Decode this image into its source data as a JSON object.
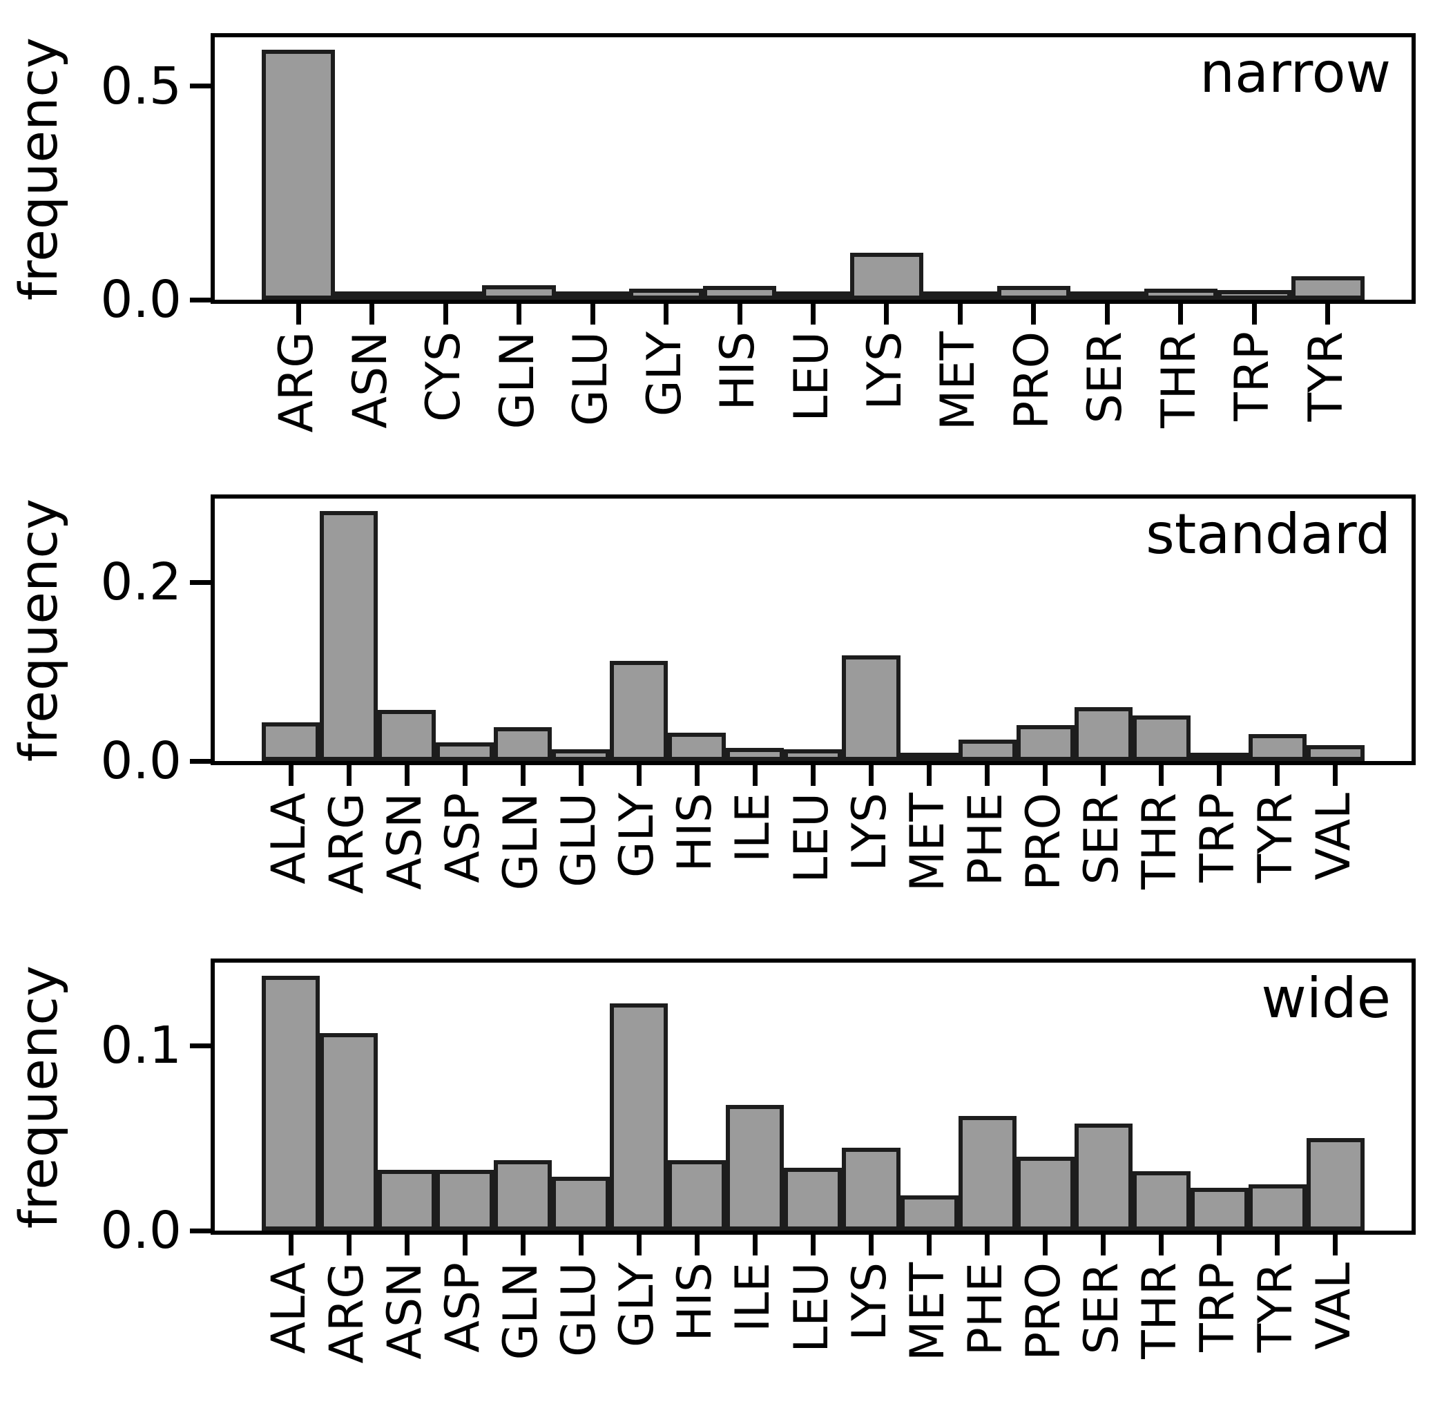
{
  "figure": {
    "background": "#ffffff",
    "bar_fill": "#9b9b9b",
    "bar_edge": "#1d1d1d",
    "axis_color": "#000000",
    "text_color": "#000000"
  },
  "chart_data": [
    {
      "type": "bar",
      "title": "narrow",
      "ylabel": "frequency",
      "xlabel": "",
      "grid": false,
      "legend": null,
      "ylim": [
        0,
        0.614
      ],
      "ytick_labels": [
        "0.0",
        "0.5"
      ],
      "ytick_values": [
        0.0,
        0.5
      ],
      "categories": [
        "ARG",
        "ASN",
        "CYS",
        "GLN",
        "GLU",
        "GLY",
        "HIS",
        "LEU",
        "LYS",
        "MET",
        "PRO",
        "SER",
        "THR",
        "TRP",
        "TYR"
      ],
      "values": [
        0.585,
        0.005,
        0.005,
        0.034,
        0.005,
        0.026,
        0.033,
        0.005,
        0.11,
        0.012,
        0.032,
        0.006,
        0.026,
        0.023,
        0.055
      ]
    },
    {
      "type": "bar",
      "title": "standard",
      "ylabel": "frequency",
      "xlabel": "",
      "grid": false,
      "legend": null,
      "ylim": [
        0,
        0.294
      ],
      "ytick_labels": [
        "0.0",
        "0.2"
      ],
      "ytick_values": [
        0.0,
        0.2
      ],
      "categories": [
        "ALA",
        "ARG",
        "ASN",
        "ASP",
        "GLN",
        "GLU",
        "GLY",
        "HIS",
        "ILE",
        "LEU",
        "LYS",
        "MET",
        "PHE",
        "PRO",
        "SER",
        "THR",
        "TRP",
        "TYR",
        "VAL"
      ],
      "values": [
        0.043,
        0.28,
        0.057,
        0.021,
        0.038,
        0.013,
        0.112,
        0.032,
        0.015,
        0.013,
        0.118,
        0.007,
        0.024,
        0.04,
        0.06,
        0.051,
        0.003,
        0.03,
        0.018
      ]
    },
    {
      "type": "bar",
      "title": "wide",
      "ylabel": "frequency",
      "xlabel": "",
      "grid": false,
      "legend": null,
      "ylim": [
        0,
        0.145
      ],
      "ytick_labels": [
        "0.0",
        "0.1"
      ],
      "ytick_values": [
        0.0,
        0.1
      ],
      "categories": [
        "ALA",
        "ARG",
        "ASN",
        "ASP",
        "GLN",
        "GLU",
        "GLY",
        "HIS",
        "ILE",
        "LEU",
        "LYS",
        "MET",
        "PHE",
        "PRO",
        "SER",
        "THR",
        "TRP",
        "TYR",
        "VAL"
      ],
      "values": [
        0.138,
        0.107,
        0.033,
        0.033,
        0.038,
        0.029,
        0.123,
        0.038,
        0.068,
        0.034,
        0.045,
        0.019,
        0.062,
        0.04,
        0.058,
        0.032,
        0.023,
        0.025,
        0.05
      ]
    }
  ]
}
